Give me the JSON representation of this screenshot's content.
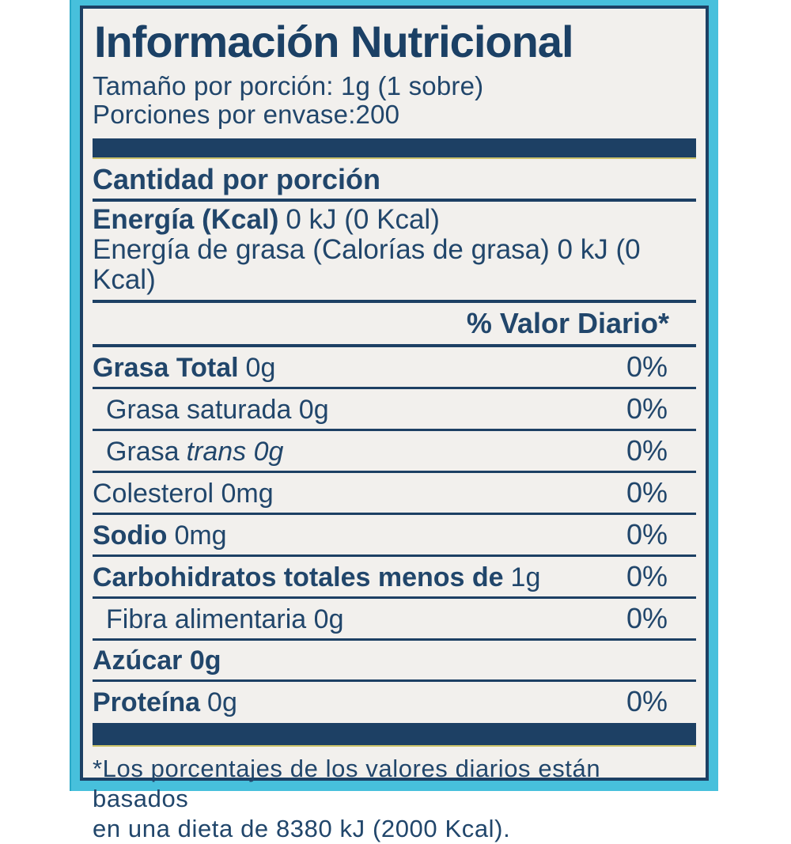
{
  "label": {
    "title": "Información Nutricional",
    "serving": {
      "size_line": "Tamaño por porción: 1g (1 sobre)",
      "count_line": "Porciones por envase:200"
    },
    "section_heading": "Cantidad por porción",
    "energy": {
      "line1_bold": "Energía (Kcal)",
      "line1_value": "0 kJ (0 Kcal)",
      "line2": "Energía de grasa (Calorías de grasa) 0 kJ (0 Kcal)"
    },
    "daily_value_heading": "% Valor Diario*",
    "rows": [
      {
        "bold": "Grasa Total",
        "regular": "0g",
        "pct": "0%"
      },
      {
        "regular": "Grasa saturada 0g",
        "pct": "0%"
      },
      {
        "regular": "Grasa",
        "italic": "trans 0g",
        "pct": "0%"
      },
      {
        "regular": "Colesterol 0mg",
        "pct": "0%"
      },
      {
        "bold": "Sodio",
        "regular": "0mg",
        "pct": "0%"
      },
      {
        "bold": "Carbohidratos totales menos de",
        "regular": "1g",
        "pct": "0%"
      },
      {
        "regular": "Fibra alimentaria 0g",
        "pct": "0%"
      },
      {
        "bold": "Azúcar 0g"
      },
      {
        "bold": "Proteína",
        "regular": "0g",
        "pct": "0%"
      }
    ],
    "footnote": {
      "line1": "*Los porcentajes de los valores diarios están basados",
      "line2": "en una dieta de 8380 kJ (2000 Kcal)."
    },
    "colors": {
      "navy": "#1d4064",
      "cyan": "#47c0dc",
      "label_background": "#f2f0ed"
    }
  }
}
